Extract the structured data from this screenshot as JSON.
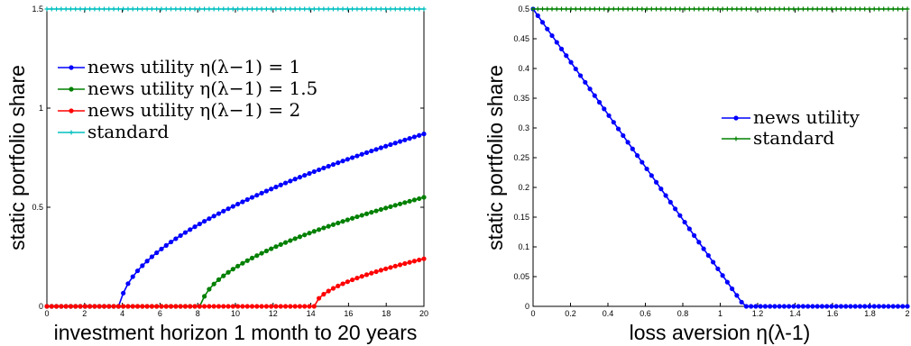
{
  "chart_data": [
    {
      "type": "line",
      "title": "",
      "xlabel": "investment horizon 1 month to 20 years",
      "ylabel": "static portfolio share",
      "xlim": [
        0,
        20
      ],
      "ylim": [
        0,
        1.5
      ],
      "xticks": [
        "0",
        "2",
        "4",
        "6",
        "8",
        "10",
        "12",
        "14",
        "16",
        "18",
        "20"
      ],
      "yticks": [
        "0",
        "0.5",
        "1",
        "1.5"
      ],
      "legend_position": "upper-left",
      "series": [
        {
          "name": "news utility η(λ−1) = 1",
          "color": "#0000ff",
          "marker": "dot",
          "onset": 3.9,
          "end_value": 0.87,
          "shape": "concave-rise"
        },
        {
          "name": "news utility η(λ−1) = 1.5",
          "color": "#008000",
          "marker": "dot",
          "onset": 8.2,
          "end_value": 0.55,
          "shape": "concave-rise"
        },
        {
          "name": "news utility η(λ−1) = 2",
          "color": "#ff0000",
          "marker": "dot",
          "onset": 14.2,
          "end_value": 0.24,
          "shape": "concave-rise"
        },
        {
          "name": "standard",
          "color": "#00bfbf",
          "marker": "plus",
          "constant": 1.5
        }
      ]
    },
    {
      "type": "line",
      "title": "",
      "xlabel": "loss aversion η(λ-1)",
      "ylabel": "static portfolio share",
      "xlim": [
        0,
        2
      ],
      "ylim": [
        0,
        0.5
      ],
      "xticks": [
        "0",
        "0.2",
        "0.4",
        "0.6",
        "0.8",
        "1",
        "1.2",
        "1.4",
        "1.6",
        "1.8",
        "2"
      ],
      "yticks": [
        "0",
        "0.05",
        "0.1",
        "0.15",
        "0.2",
        "0.25",
        "0.3",
        "0.35",
        "0.4",
        "0.45",
        "0.5"
      ],
      "legend_position": "center-right",
      "series": [
        {
          "name": "news utility",
          "color": "#0000ff",
          "marker": "dot",
          "start_value": 0.5,
          "zero_at": 1.13
        },
        {
          "name": "standard",
          "color": "#008000",
          "marker": "plus",
          "constant": 0.5
        }
      ]
    }
  ]
}
